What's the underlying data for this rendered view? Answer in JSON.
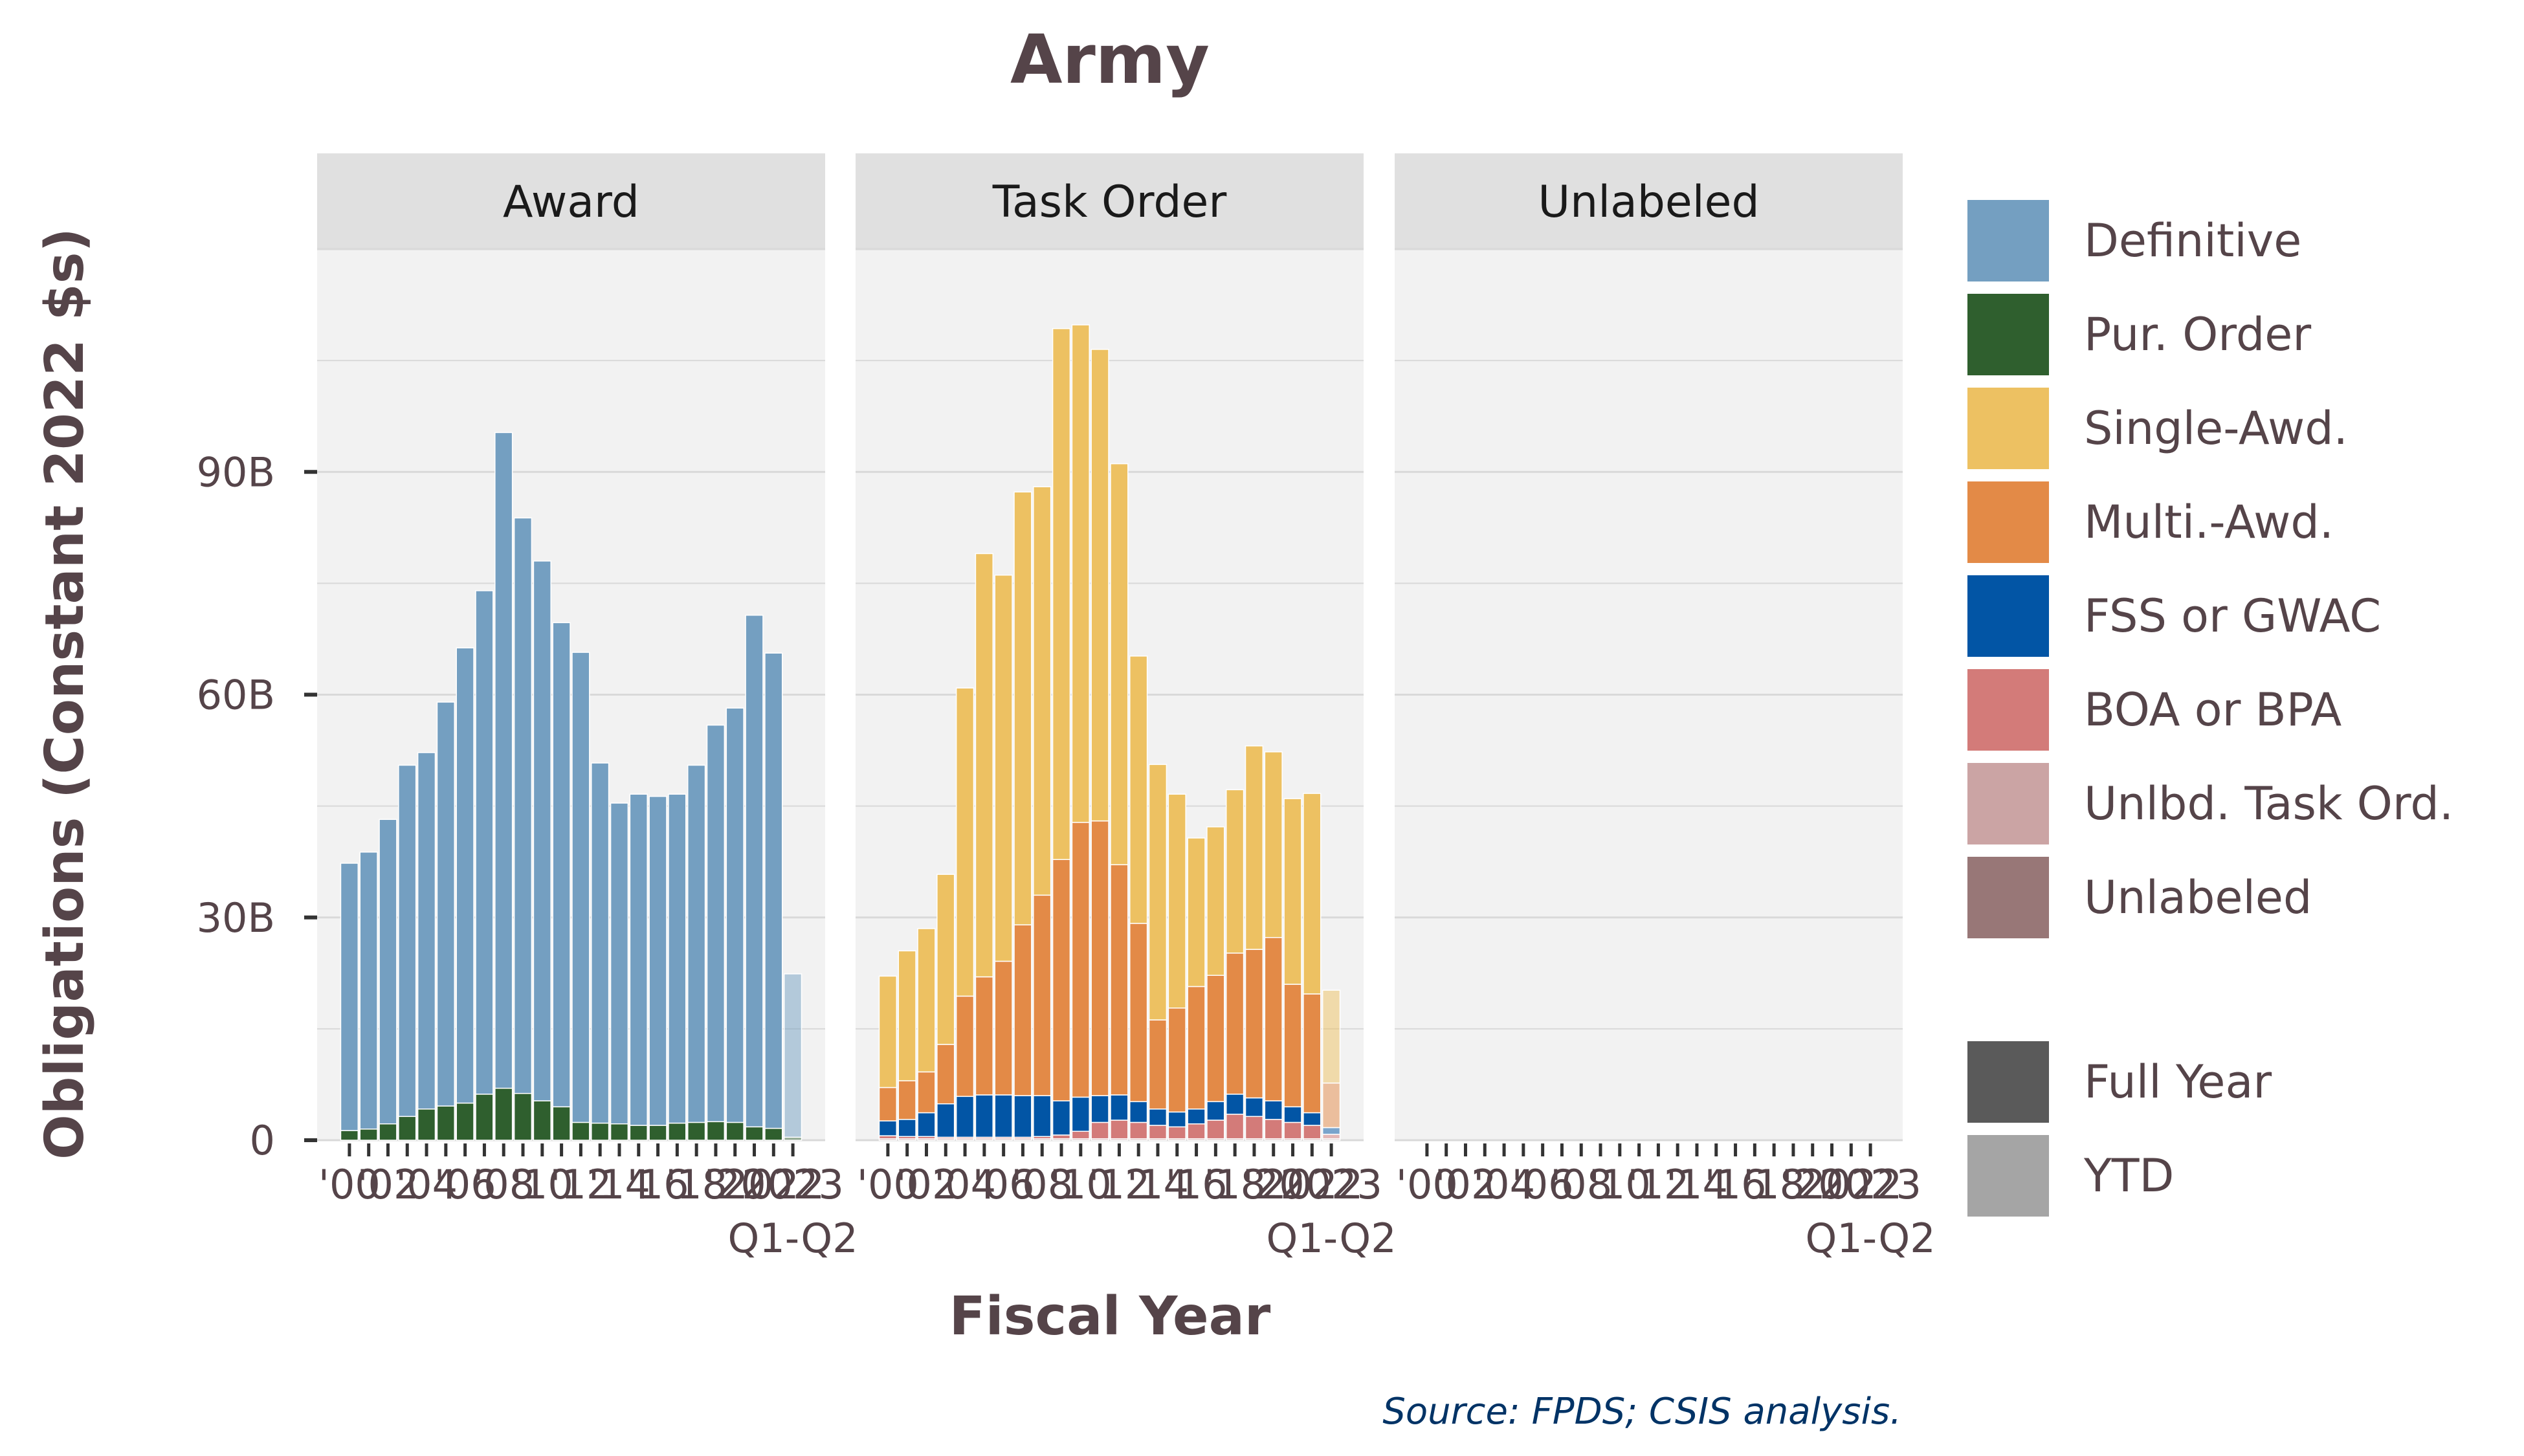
{
  "chart_data": {
    "type": "bar",
    "stacked": true,
    "title": "Army",
    "xlabel": "Fiscal Year",
    "ylabel": "Obligations (Constant 2022 $s)",
    "source": "Source: FPDS; CSIS analysis.",
    "ylim": [
      0,
      120
    ],
    "yticks": [
      {
        "value": 0,
        "label": "0"
      },
      {
        "value": 30,
        "label": "30B"
      },
      {
        "value": 60,
        "label": "60B"
      },
      {
        "value": 90,
        "label": "90B"
      }
    ],
    "x": [
      2000,
      2001,
      2002,
      2003,
      2004,
      2005,
      2006,
      2007,
      2008,
      2009,
      2010,
      2011,
      2012,
      2013,
      2014,
      2015,
      2016,
      2017,
      2018,
      2019,
      2020,
      2021,
      2022,
      2023
    ],
    "xtick_labels": [
      "'00",
      "'02",
      "'04",
      "'06",
      "'08",
      "'10",
      "'12",
      "'14",
      "'16",
      "'18",
      "'20",
      "2022",
      "2023"
    ],
    "xtick_sublabel": "Q1-Q2",
    "ytd_year": 2023,
    "panels": [
      {
        "name": "Award",
        "series": [
          {
            "name": "Pur. Order",
            "values": [
              1.3,
              1.5,
              2.2,
              3.2,
              4.2,
              4.6,
              5.0,
              6.2,
              7.0,
              6.3,
              5.3,
              4.5,
              2.4,
              2.3,
              2.2,
              2.0,
              2.0,
              2.3,
              2.4,
              2.5,
              2.4,
              1.8,
              1.6,
              0.4
            ]
          },
          {
            "name": "Definitive",
            "values": [
              36.0,
              37.3,
              41.0,
              47.3,
              48.0,
              54.4,
              61.3,
              67.8,
              88.3,
              77.5,
              72.7,
              65.2,
              63.3,
              48.5,
              43.2,
              44.6,
              44.3,
              44.3,
              48.1,
              53.4,
              55.8,
              68.9,
              64.0,
              22.0
            ]
          }
        ]
      },
      {
        "name": "Task Order",
        "series": [
          {
            "name": "Unlbd. Task Ord.",
            "values": [
              0.2,
              0.2,
              0.2,
              0.2,
              0.2,
              0.2,
              0.2,
              0.2,
              0.2,
              0.2,
              0.2,
              0.2,
              0.2,
              0.2,
              0.2,
              0.2,
              0.2,
              0.2,
              0.2,
              0.2,
              0.2,
              0.2,
              0.2,
              0.2
            ]
          },
          {
            "name": "BOA or BPA",
            "values": [
              0.4,
              0.3,
              0.3,
              0.2,
              0.2,
              0.2,
              0.2,
              0.2,
              0.3,
              0.5,
              1.0,
              2.2,
              2.5,
              2.2,
              1.8,
              1.6,
              2.0,
              2.5,
              3.3,
              3.0,
              2.6,
              2.2,
              1.8,
              0.6
            ]
          },
          {
            "name": "FSS or GWAC",
            "values": [
              2.0,
              2.3,
              3.2,
              4.5,
              5.5,
              5.7,
              5.7,
              5.6,
              5.5,
              4.6,
              4.6,
              3.6,
              3.4,
              2.8,
              2.2,
              2.0,
              2.0,
              2.5,
              2.7,
              2.5,
              2.5,
              2.1,
              1.7,
              0.9
            ]
          },
          {
            "name": "Multi.-Awd.",
            "values": [
              4.5,
              5.2,
              5.5,
              8.0,
              13.5,
              15.9,
              18.0,
              23.0,
              27.0,
              32.5,
              37.0,
              37.0,
              31.0,
              24.0,
              12.0,
              14.0,
              16.5,
              17.0,
              19.0,
              20.0,
              22.0,
              16.5,
              16.0,
              6.0
            ]
          },
          {
            "name": "Single-Awd.",
            "values": [
              15.0,
              17.5,
              19.3,
              22.9,
              41.5,
              57.0,
              52.0,
              58.3,
              55.0,
              71.5,
              67.0,
              63.5,
              54.0,
              36.0,
              34.4,
              28.8,
              20.0,
              20.0,
              22.0,
              27.4,
              25.0,
              25.0,
              27.0,
              12.5
            ]
          }
        ]
      },
      {
        "name": "Unlabeled",
        "series": []
      }
    ],
    "legend": {
      "position": "right",
      "items": [
        {
          "name": "Definitive",
          "color": "#749FC1"
        },
        {
          "name": "Pur. Order",
          "color": "#2F5F2E"
        },
        {
          "name": "Single-Awd.",
          "color": "#EDC162"
        },
        {
          "name": "Multi.-Awd.",
          "color": "#E38A47"
        },
        {
          "name": "FSS or GWAC",
          "color": "#0255A5"
        },
        {
          "name": "BOA or BPA",
          "color": "#D37B79"
        },
        {
          "name": "Unlbd. Task Ord.",
          "color": "#CBA4A4"
        },
        {
          "name": "Unlabeled",
          "color": "#987777"
        }
      ],
      "alpha_items": [
        {
          "name": "Full Year",
          "color": "#5A5A5A"
        },
        {
          "name": "YTD",
          "color": "#A5A5A5"
        }
      ]
    },
    "colors": {
      "Definitive": "#749FC1",
      "Pur. Order": "#2F5F2E",
      "Single-Awd.": "#EDC162",
      "Multi.-Awd.": "#E38A47",
      "FSS or GWAC": "#0255A5",
      "BOA or BPA": "#D37B79",
      "Unlbd. Task Ord.": "#CBA4A4",
      "Unlabeled": "#987777",
      "title_text": "#554449",
      "axis_text": "#554449",
      "source_text": "#003366",
      "panel_bg": "#F2F2F2",
      "strip_bg": "#E0E0E0",
      "grid": "#D9D9D9"
    },
    "grid": true
  }
}
